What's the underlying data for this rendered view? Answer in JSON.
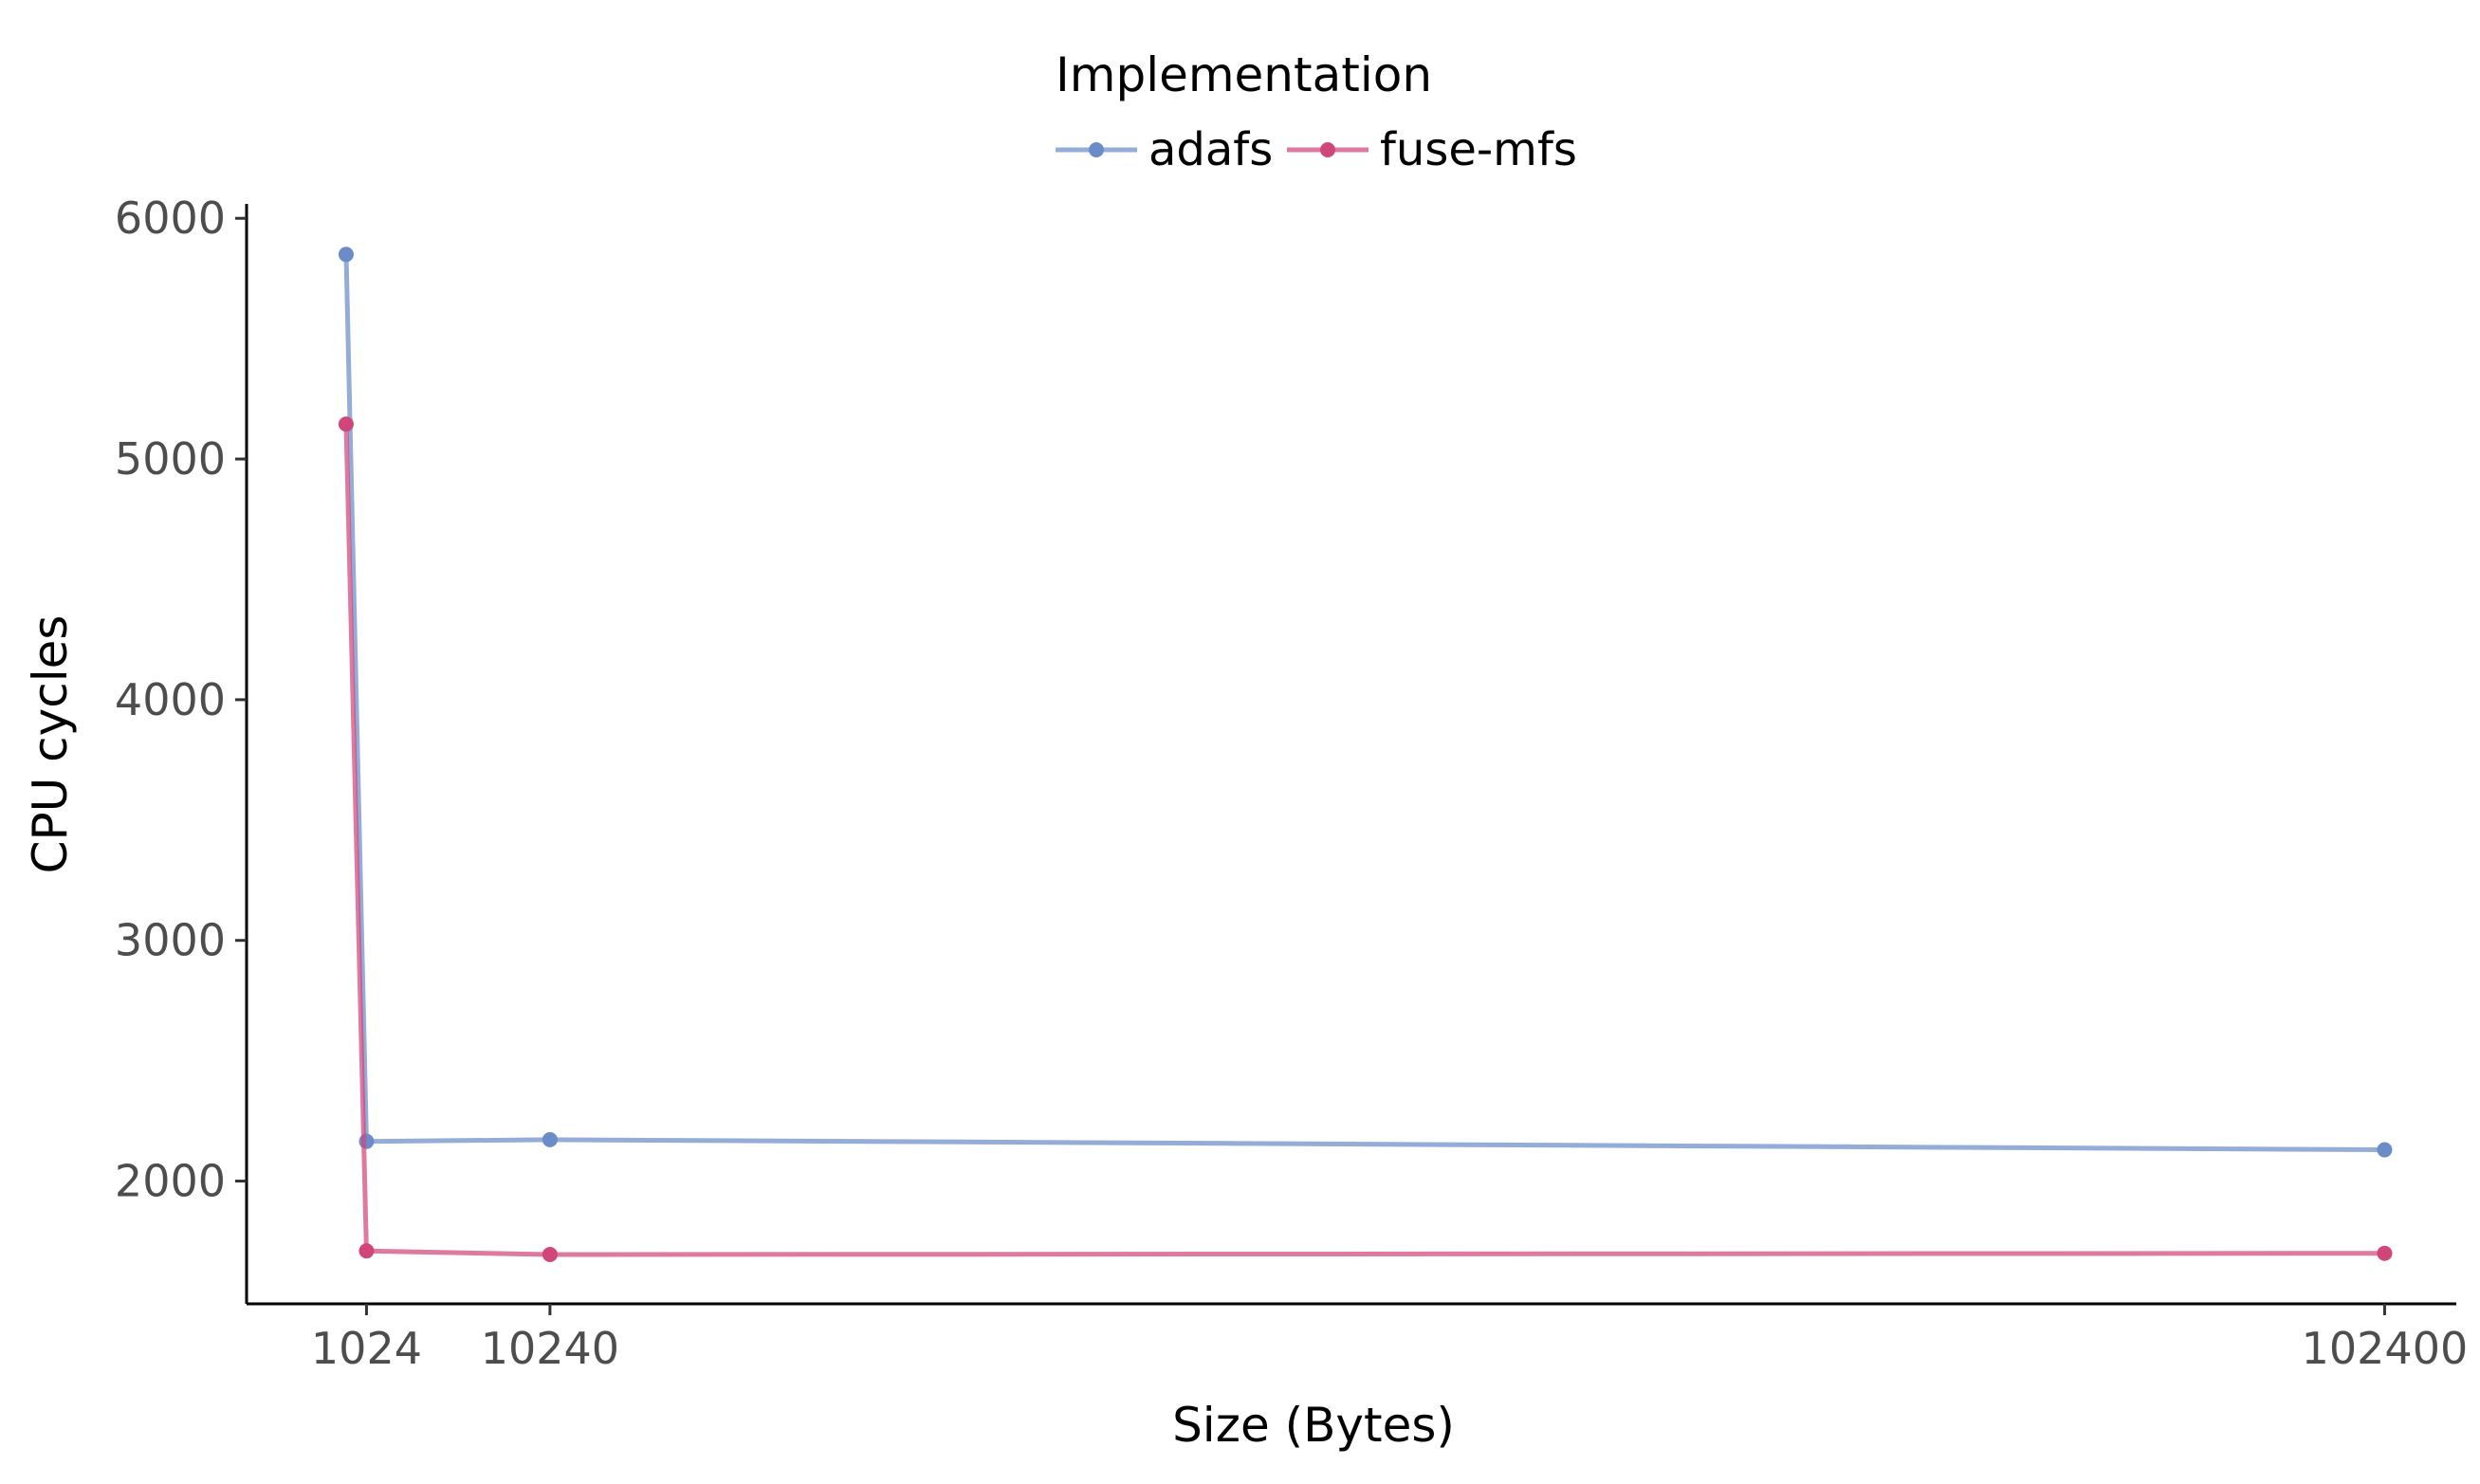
{
  "chart_data": {
    "type": "line",
    "title": "",
    "xlabel": "Size (Bytes)",
    "ylabel": "CPU cycles",
    "x_ticks": [
      1024,
      10240,
      102400
    ],
    "x_tick_labels": [
      "1024",
      "10240",
      "102400"
    ],
    "y_ticks": [
      2000,
      3000,
      4000,
      5000,
      6000
    ],
    "y_tick_labels": [
      "2000",
      "3000",
      "4000",
      "5000",
      "6000"
    ],
    "xlim": [
      -5000,
      106000
    ],
    "ylim": [
      1490,
      6060
    ],
    "grid": false,
    "legend": {
      "title": "Implementation",
      "placement": "top"
    },
    "series": [
      {
        "name": "adafs",
        "color": "#6b8cc9",
        "points": [
          [
            0,
            5850
          ],
          [
            1024,
            2165
          ],
          [
            10240,
            2172
          ],
          [
            102400,
            2130
          ]
        ]
      },
      {
        "name": "fuse-mfs",
        "color": "#d1467a",
        "points": [
          [
            0,
            5145
          ],
          [
            1024,
            1710
          ],
          [
            10240,
            1695
          ],
          [
            102400,
            1700
          ]
        ]
      }
    ]
  }
}
